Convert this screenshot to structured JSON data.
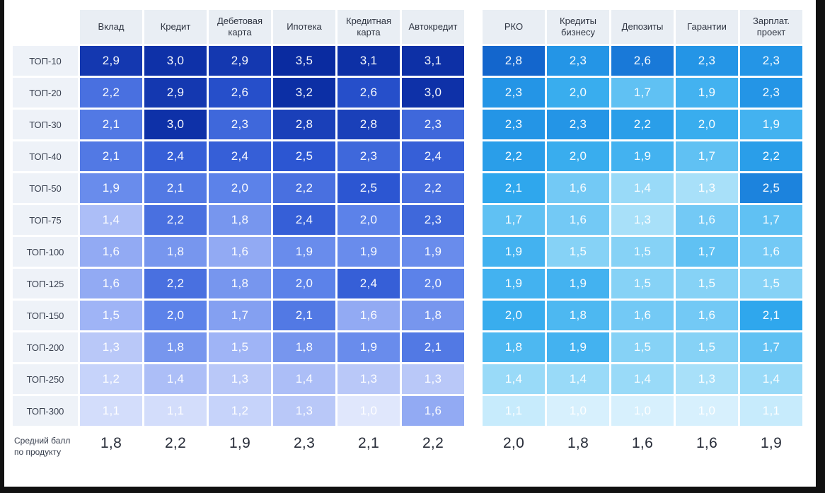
{
  "chart_data": {
    "type": "heatmap",
    "title": "",
    "legend_position": "none",
    "grid": false,
    "value_format": "decimal-comma",
    "cell_text_color": "#ffffff",
    "header_bg": "#e9eef4",
    "row_label_bg": "#eef2f8",
    "row_headers": [
      "ТОП-10",
      "ТОП-20",
      "ТОП-30",
      "ТОП-40",
      "ТОП-50",
      "ТОП-75",
      "ТОП-100",
      "ТОП-125",
      "ТОП-150",
      "ТОП-200",
      "ТОП-250",
      "ТОП-300"
    ],
    "average_label": "Средний балл по продукту",
    "groups": [
      {
        "name": "retail-products",
        "columns": [
          "Вклад",
          "Кредит",
          "Дебетовая карта",
          "Ипотека",
          "Кредитная карта",
          "Автокредит"
        ],
        "scale": {
          "domain": [
            1.0,
            1.5,
            2.0,
            2.5,
            3.0,
            3.5
          ],
          "colors": [
            "#e0e7fc",
            "#9fb4f6",
            "#5c82e9",
            "#2c56d2",
            "#0e31a8",
            "#0a2ba0"
          ]
        },
        "rows": [
          [
            "2,9",
            "3,0",
            "2,9",
            "3,5",
            "3,1",
            "3,1"
          ],
          [
            "2,2",
            "2,9",
            "2,6",
            "3,2",
            "2,6",
            "3,0"
          ],
          [
            "2,1",
            "3,0",
            "2,3",
            "2,8",
            "2,8",
            "2,3"
          ],
          [
            "2,1",
            "2,4",
            "2,4",
            "2,5",
            "2,3",
            "2,4"
          ],
          [
            "1,9",
            "2,1",
            "2,0",
            "2,2",
            "2,5",
            "2,2"
          ],
          [
            "1,4",
            "2,2",
            "1,8",
            "2,4",
            "2,0",
            "2,3"
          ],
          [
            "1,6",
            "1,8",
            "1,6",
            "1,9",
            "1,9",
            "1,9"
          ],
          [
            "1,6",
            "2,2",
            "1,8",
            "2,0",
            "2,4",
            "2,0"
          ],
          [
            "1,5",
            "2,0",
            "1,7",
            "2,1",
            "1,6",
            "1,8"
          ],
          [
            "1,3",
            "1,8",
            "1,5",
            "1,8",
            "1,9",
            "2,1"
          ],
          [
            "1,2",
            "1,4",
            "1,3",
            "1,4",
            "1,3",
            "1,3"
          ],
          [
            "1,1",
            "1,1",
            "1,2",
            "1,3",
            "1,0",
            "1,6"
          ]
        ],
        "averages": [
          "1,8",
          "2,2",
          "1,9",
          "2,3",
          "2,1",
          "2,2"
        ]
      },
      {
        "name": "business-products",
        "columns": [
          "РКО",
          "Кредиты бизнесу",
          "Депозиты",
          "Гарантии",
          "Зарплат. проект"
        ],
        "scale": {
          "domain": [
            1.0,
            1.4,
            1.8,
            2.1,
            2.4,
            2.8
          ],
          "colors": [
            "#d7f0fd",
            "#99daf8",
            "#4db8f1",
            "#2fa7ed",
            "#1f8ce2",
            "#1366cd"
          ]
        },
        "rows": [
          [
            "2,8",
            "2,3",
            "2,6",
            "2,3",
            "2,3"
          ],
          [
            "2,3",
            "2,0",
            "1,7",
            "1,9",
            "2,3"
          ],
          [
            "2,3",
            "2,3",
            "2,2",
            "2,0",
            "1,9"
          ],
          [
            "2,2",
            "2,0",
            "1,9",
            "1,7",
            "2,2"
          ],
          [
            "2,1",
            "1,6",
            "1,4",
            "1,3",
            "2,5"
          ],
          [
            "1,7",
            "1,6",
            "1,3",
            "1,6",
            "1,7"
          ],
          [
            "1,9",
            "1,5",
            "1,5",
            "1,7",
            "1,6"
          ],
          [
            "1,9",
            "1,9",
            "1,5",
            "1,5",
            "1,5"
          ],
          [
            "2,0",
            "1,8",
            "1,6",
            "1,6",
            "2,1"
          ],
          [
            "1,8",
            "1,9",
            "1,5",
            "1,5",
            "1,7"
          ],
          [
            "1,4",
            "1,4",
            "1,4",
            "1,3",
            "1,4"
          ],
          [
            "1,1",
            "1,0",
            "1,0",
            "1,0",
            "1,1"
          ]
        ],
        "averages": [
          "2,0",
          "1,8",
          "1,6",
          "1,6",
          "1,9"
        ]
      }
    ]
  }
}
